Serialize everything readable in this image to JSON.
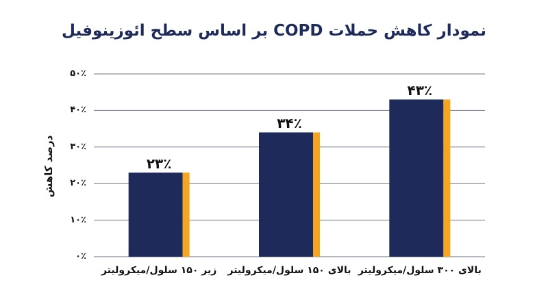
{
  "colors": {
    "bar": "#1e2a5a",
    "bar_accent": "#f5a524",
    "title": "#1e2a5a",
    "grid": "#6b7384",
    "text": "#111111"
  },
  "chart_data": {
    "type": "bar",
    "title": "نمودار کاهش حملات COPD بر اساس سطح ائوزینوفیل",
    "ylabel": "درصد کاهش",
    "ylim": [
      0,
      50
    ],
    "yticks": [
      0,
      10,
      20,
      30,
      40,
      50
    ],
    "ytick_labels": [
      "۰٪",
      "۱۰٪",
      "۲۰٪",
      "۳۰٪",
      "۴۰٪",
      "۵۰٪"
    ],
    "categories": [
      "زیر ۱۵۰ سلول/میکرولیتر",
      "بالای ۱۵۰ سلول/میکرولیتر",
      "بالای ۳۰۰ سلول/میکرولیتر"
    ],
    "values": [
      23,
      34,
      43
    ],
    "value_labels": [
      "۲۳٪",
      "۳۴٪",
      "۴۳٪"
    ],
    "grid": true
  }
}
